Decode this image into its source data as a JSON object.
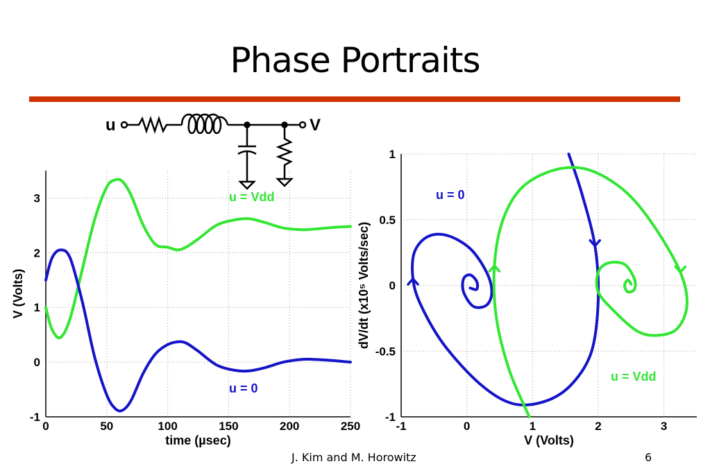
{
  "slide": {
    "title": "Phase Portraits",
    "footer_author": "J. Kim and M. Horowitz",
    "page_number": "6",
    "rule_color": "#cc3300"
  },
  "circuit": {
    "input_label": "u",
    "output_label": "V",
    "components": [
      "resistor",
      "inductor",
      "capacitor-to-ground",
      "resistor-to-ground"
    ]
  },
  "colors": {
    "u_zero": "#1414c8",
    "u_vdd": "#33e633"
  },
  "chart_data": [
    {
      "type": "line",
      "title": "",
      "xlabel": "time (µsec)",
      "ylabel": "V (Volts)",
      "xlim": [
        0,
        250
      ],
      "ylim": [
        -1,
        3.5
      ],
      "xticks": [
        0,
        50,
        100,
        150,
        200,
        250
      ],
      "yticks": [
        -1,
        0,
        1,
        2,
        3
      ],
      "grid": true,
      "series": [
        {
          "name": "u = Vdd",
          "color": "#33e633",
          "x": [
            0,
            5,
            12,
            20,
            30,
            40,
            50,
            57,
            63,
            70,
            80,
            90,
            100,
            108,
            115,
            125,
            140,
            155,
            167,
            180,
            195,
            210,
            220,
            235,
            250
          ],
          "y": [
            1.0,
            0.6,
            0.45,
            0.8,
            1.7,
            2.6,
            3.2,
            3.33,
            3.3,
            3.05,
            2.5,
            2.15,
            2.1,
            2.05,
            2.1,
            2.25,
            2.5,
            2.6,
            2.62,
            2.55,
            2.45,
            2.42,
            2.43,
            2.46,
            2.48
          ]
        },
        {
          "name": "u = 0",
          "color": "#1414c8",
          "x": [
            0,
            5,
            12,
            20,
            30,
            40,
            50,
            57,
            63,
            70,
            80,
            90,
            100,
            108,
            115,
            125,
            140,
            155,
            167,
            180,
            195,
            210,
            220,
            235,
            250
          ],
          "y": [
            1.5,
            1.9,
            2.05,
            1.9,
            1.1,
            0.1,
            -0.6,
            -0.85,
            -0.88,
            -0.7,
            -0.2,
            0.15,
            0.32,
            0.37,
            0.35,
            0.2,
            -0.05,
            -0.15,
            -0.16,
            -0.1,
            0.0,
            0.05,
            0.05,
            0.03,
            0.0
          ]
        }
      ],
      "annotations": [
        {
          "text": "u = Vdd",
          "color": "#33e633"
        },
        {
          "text": "u = 0",
          "color": "#1414c8"
        }
      ]
    },
    {
      "type": "line",
      "title": "",
      "xlabel": "V (Volts)",
      "ylabel": "dV/dt (x10⁵ Volts/sec)",
      "xlim": [
        -1,
        3.5
      ],
      "ylim": [
        -1,
        1
      ],
      "xticks": [
        -1,
        0,
        1,
        2,
        3
      ],
      "yticks": [
        -1,
        -0.5,
        0,
        0.5,
        1
      ],
      "ytick_labels": [
        "-1",
        "-0.5",
        "0",
        "0.5",
        "1"
      ],
      "grid": true,
      "series": [
        {
          "name": "u = 0",
          "color": "#1414c8",
          "x": [
            1.55,
            1.75,
            1.95,
            2.0,
            1.9,
            1.6,
            1.2,
            0.7,
            0.2,
            -0.35,
            -0.7,
            -0.82,
            -0.8,
            -0.6,
            -0.3,
            0.05,
            0.3,
            0.38,
            0.3,
            0.1,
            -0.05,
            -0.05,
            0.05,
            0.15,
            0.15,
            0.05
          ],
          "y": [
            1.0,
            0.7,
            0.3,
            -0.1,
            -0.5,
            -0.75,
            -0.88,
            -0.9,
            -0.75,
            -0.45,
            -0.15,
            0.05,
            0.25,
            0.37,
            0.38,
            0.28,
            0.1,
            -0.05,
            -0.15,
            -0.16,
            -0.05,
            0.05,
            0.08,
            0.03,
            -0.03,
            -0.02
          ]
        },
        {
          "name": "u = Vdd",
          "color": "#33e633",
          "x": [
            0.95,
            0.65,
            0.45,
            0.42,
            0.55,
            0.85,
            1.35,
            1.85,
            2.4,
            2.85,
            3.25,
            3.35,
            3.2,
            2.9,
            2.6,
            2.25,
            2.0,
            2.0,
            2.15,
            2.4,
            2.55,
            2.55,
            2.45,
            2.4,
            2.45,
            2.5
          ],
          "y": [
            -1.0,
            -0.65,
            -0.25,
            0.15,
            0.5,
            0.75,
            0.88,
            0.88,
            0.72,
            0.45,
            0.1,
            -0.15,
            -0.33,
            -0.38,
            -0.35,
            -0.2,
            -0.05,
            0.1,
            0.17,
            0.16,
            0.05,
            -0.03,
            -0.05,
            0.0,
            0.04,
            0.01
          ]
        }
      ],
      "annotations": [
        {
          "text": "u = 0",
          "color": "#1414c8"
        },
        {
          "text": "u = Vdd",
          "color": "#33e633"
        }
      ]
    }
  ]
}
